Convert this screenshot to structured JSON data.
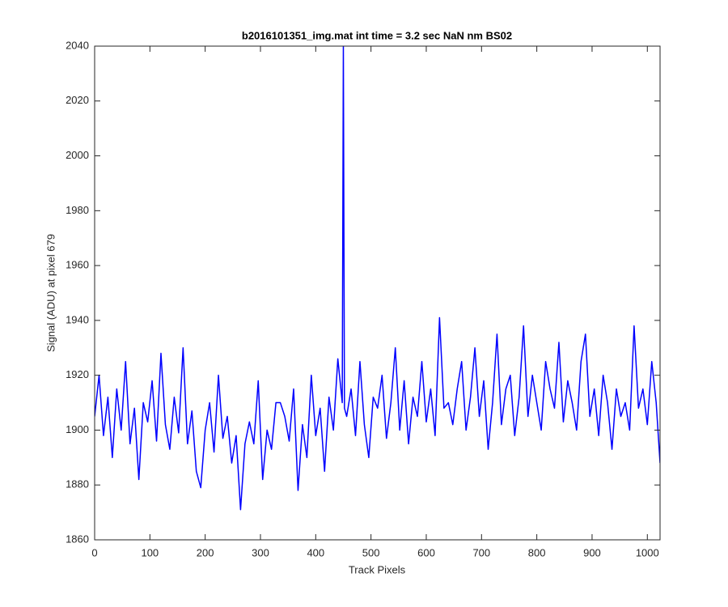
{
  "chart_data": {
    "type": "line",
    "title": "b2016101351_img.mat int time = 3.2 sec  NaN nm BS02",
    "x_label": "Track Pixels",
    "y_label": "Signal (ADU) at pixel 679",
    "xlim": [
      0,
      1023
    ],
    "ylim": [
      1860,
      2040
    ],
    "xticks": [
      0,
      100,
      200,
      300,
      400,
      500,
      600,
      700,
      800,
      900,
      1000
    ],
    "yticks": [
      1860,
      1880,
      1900,
      1920,
      1940,
      1960,
      1980,
      2000,
      2020,
      2040
    ],
    "grid": false,
    "x": [
      0,
      8,
      16,
      24,
      32,
      40,
      48,
      56,
      64,
      72,
      80,
      88,
      96,
      104,
      112,
      120,
      128,
      136,
      144,
      152,
      160,
      168,
      176,
      184,
      192,
      200,
      208,
      216,
      224,
      232,
      240,
      248,
      256,
      264,
      272,
      280,
      288,
      296,
      304,
      312,
      320,
      328,
      336,
      344,
      352,
      360,
      368,
      376,
      384,
      392,
      400,
      408,
      416,
      424,
      432,
      440,
      448,
      450,
      452,
      456,
      464,
      472,
      480,
      488,
      496,
      504,
      512,
      520,
      528,
      536,
      544,
      552,
      560,
      568,
      576,
      584,
      592,
      600,
      608,
      616,
      624,
      632,
      640,
      648,
      656,
      664,
      672,
      680,
      688,
      696,
      704,
      712,
      720,
      728,
      736,
      744,
      752,
      760,
      768,
      776,
      784,
      792,
      800,
      808,
      816,
      824,
      832,
      840,
      848,
      856,
      864,
      872,
      880,
      888,
      896,
      904,
      912,
      920,
      928,
      936,
      944,
      952,
      960,
      968,
      976,
      984,
      992,
      1000,
      1008,
      1016,
      1023
    ],
    "series": [
      {
        "name": "signal",
        "color": "#0000ff",
        "values": [
          1905,
          1920,
          1898,
          1912,
          1890,
          1915,
          1900,
          1925,
          1895,
          1908,
          1882,
          1910,
          1903,
          1918,
          1896,
          1928,
          1902,
          1893,
          1912,
          1899,
          1930,
          1895,
          1907,
          1885,
          1879,
          1900,
          1910,
          1892,
          1920,
          1897,
          1905,
          1888,
          1898,
          1871,
          1895,
          1903,
          1895,
          1918,
          1882,
          1900,
          1893,
          1910,
          1910,
          1905,
          1896,
          1915,
          1878,
          1902,
          1890,
          1920,
          1898,
          1908,
          1885,
          1912,
          1900,
          1926,
          1910,
          2040,
          1908,
          1905,
          1915,
          1898,
          1925,
          1902,
          1890,
          1912,
          1908,
          1920,
          1897,
          1910,
          1930,
          1900,
          1918,
          1895,
          1912,
          1905,
          1925,
          1903,
          1915,
          1898,
          1941,
          1908,
          1910,
          1902,
          1915,
          1925,
          1900,
          1912,
          1930,
          1905,
          1918,
          1893,
          1910,
          1935,
          1902,
          1915,
          1920,
          1898,
          1912,
          1938,
          1905,
          1920,
          1910,
          1900,
          1925,
          1915,
          1908,
          1932,
          1903,
          1918,
          1910,
          1900,
          1925,
          1935,
          1905,
          1915,
          1898,
          1920,
          1910,
          1893,
          1915,
          1905,
          1910,
          1900,
          1938,
          1908,
          1915,
          1902,
          1925,
          1910,
          1888
        ]
      }
    ]
  }
}
